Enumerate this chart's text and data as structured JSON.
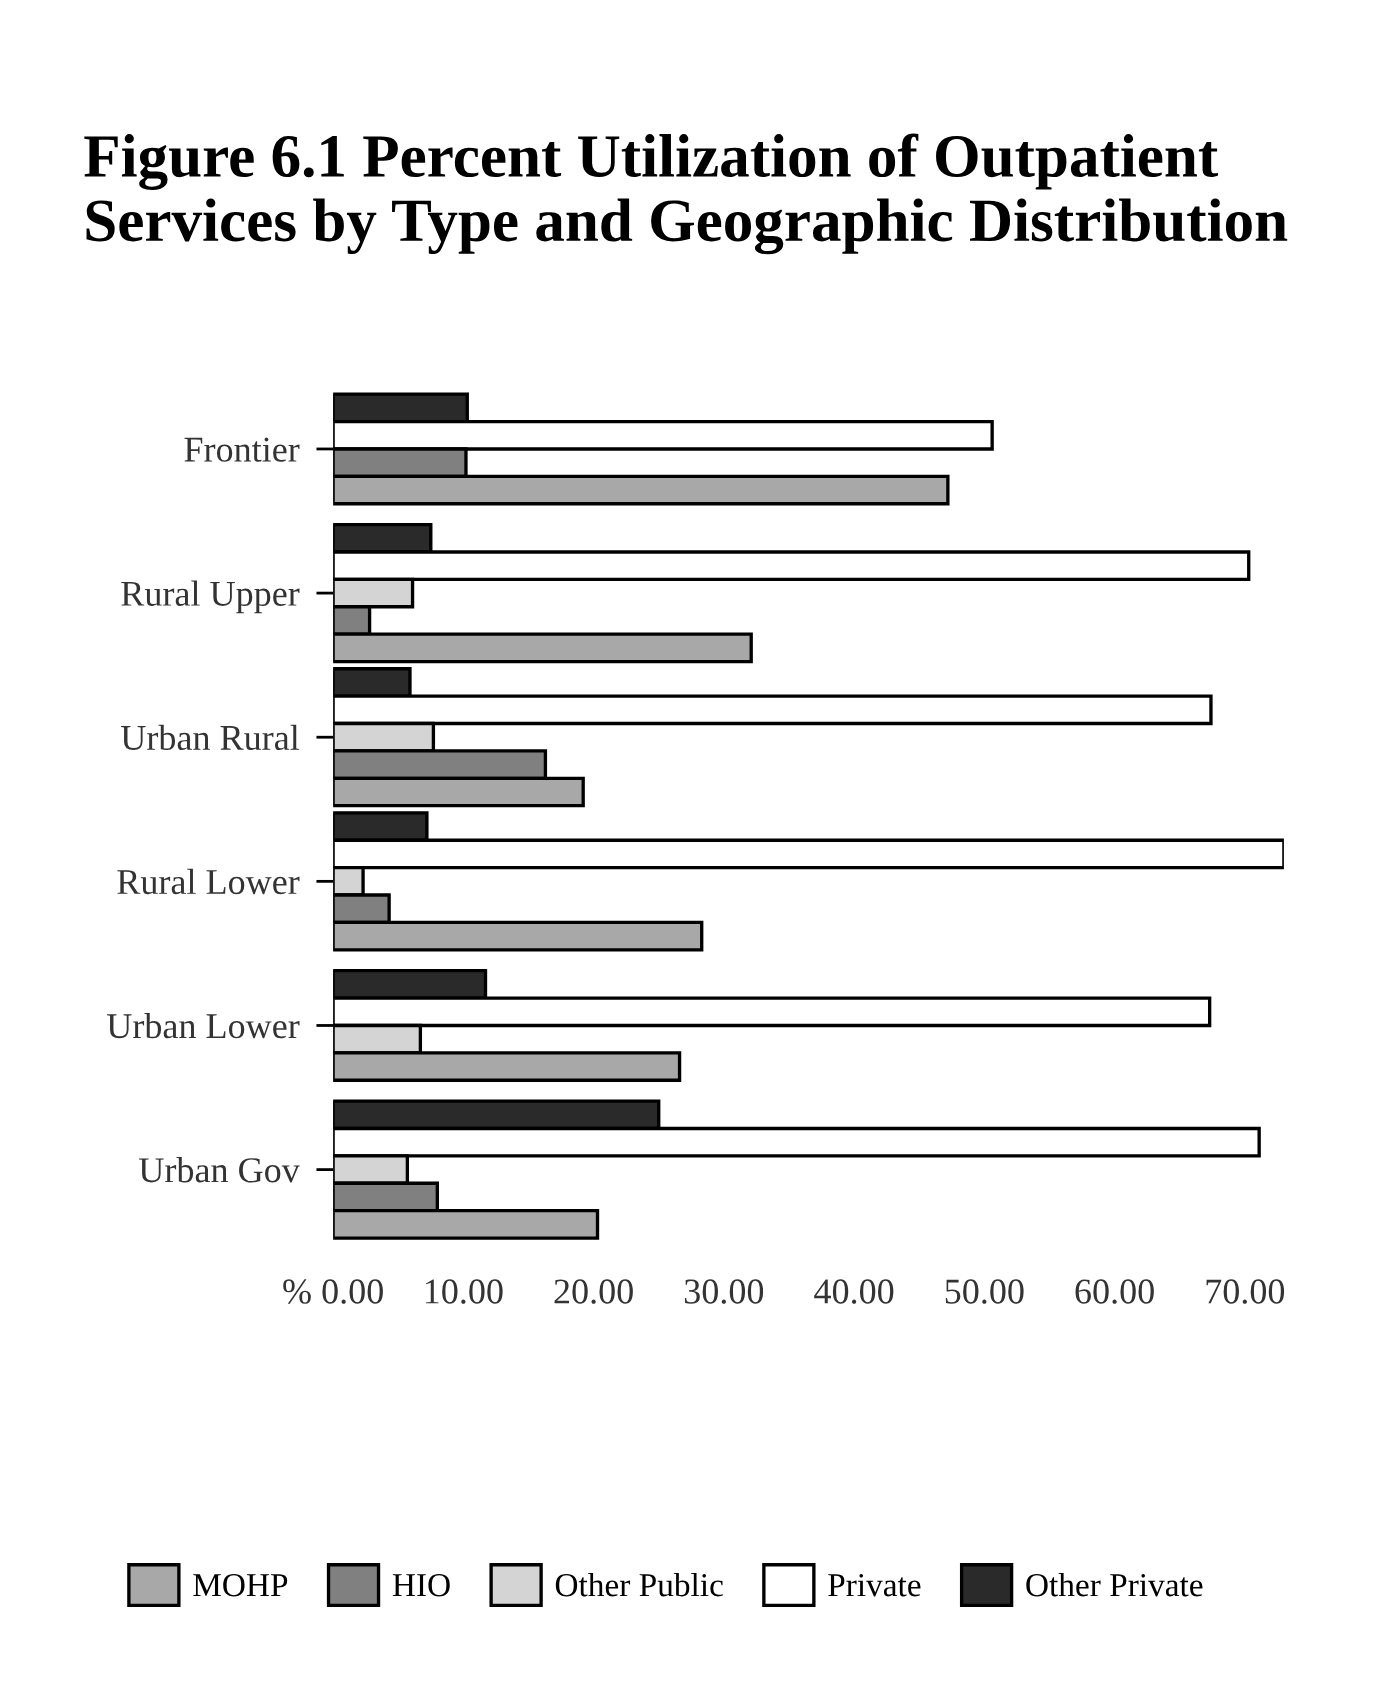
{
  "chart_data": {
    "type": "bar",
    "orientation": "horizontal",
    "title": "Figure 6.1 Percent Utilization of Outpatient Services by Type and Geographic Distribution",
    "categories": [
      "Frontier",
      "Rural Upper",
      "Urban Rural",
      "Rural Lower",
      "Urban Lower",
      "Urban Gov"
    ],
    "series": [
      {
        "name": "Other Private",
        "color": "#2a2a2a",
        "values": [
          10.3,
          7.5,
          5.9,
          7.2,
          11.7,
          25.0
        ]
      },
      {
        "name": "Private",
        "color": "#ffffff",
        "values": [
          50.6,
          70.3,
          67.4,
          73.0,
          67.3,
          71.1
        ]
      },
      {
        "name": "Other Public",
        "color": "#d4d4d4",
        "values": [
          null,
          6.1,
          7.7,
          2.3,
          6.7,
          5.7
        ]
      },
      {
        "name": "HIO",
        "color": "#808080",
        "values": [
          10.2,
          2.8,
          16.3,
          4.3,
          null,
          8.0
        ]
      },
      {
        "name": "MOHP",
        "color": "#a8a8a8",
        "values": [
          47.2,
          32.1,
          19.2,
          28.3,
          26.6,
          20.3
        ]
      }
    ],
    "xticks": [
      {
        "value": 0,
        "label": "% 0.00"
      },
      {
        "value": 10,
        "label": "10.00"
      },
      {
        "value": 20,
        "label": "20.00"
      },
      {
        "value": 30,
        "label": "30.00"
      },
      {
        "value": 40,
        "label": "40.00"
      },
      {
        "value": 50,
        "label": "50.00"
      },
      {
        "value": 60,
        "label": "60.00"
      },
      {
        "value": 70,
        "label": "70.00"
      }
    ],
    "xlim": [
      0,
      73.0
    ],
    "grid": false,
    "legend": "bottom"
  }
}
